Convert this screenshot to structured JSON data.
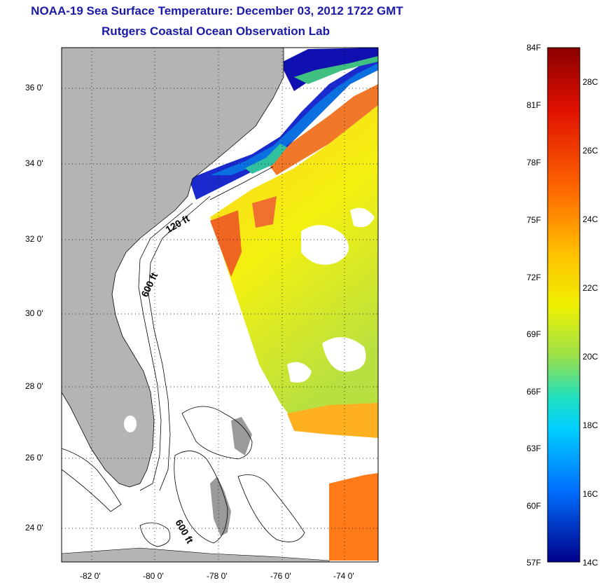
{
  "header": {
    "title": "NOAA-19 Sea Surface Temperature:  December 03, 2012 1722 GMT",
    "subtitle": "Rutgers Coastal Ocean Observation Lab"
  },
  "map": {
    "lat_labels": [
      "36 0'",
      "34 0'",
      "32 0'",
      "30 0'",
      "28 0'",
      "26 0'",
      "24 0'"
    ],
    "lon_labels": [
      "-82 0'",
      "-80 0'",
      "-78 0'",
      "-76 0'",
      "-74 0'"
    ],
    "contour_labels": [
      "120 ft",
      "600 ft",
      "600 ft"
    ]
  },
  "colorbar": {
    "fahrenheit_labels": [
      "84F",
      "81F",
      "78F",
      "75F",
      "72F",
      "69F",
      "66F",
      "63F",
      "60F",
      "57F"
    ],
    "celsius_labels": [
      "28C",
      "26C",
      "24C",
      "22C",
      "20C",
      "18C",
      "16C",
      "14C"
    ],
    "colors": [
      "#8b0000",
      "#ff2a00",
      "#ff8c00",
      "#ffe000",
      "#9be04a",
      "#00e0ff",
      "#0064ff",
      "#00008b"
    ]
  }
}
